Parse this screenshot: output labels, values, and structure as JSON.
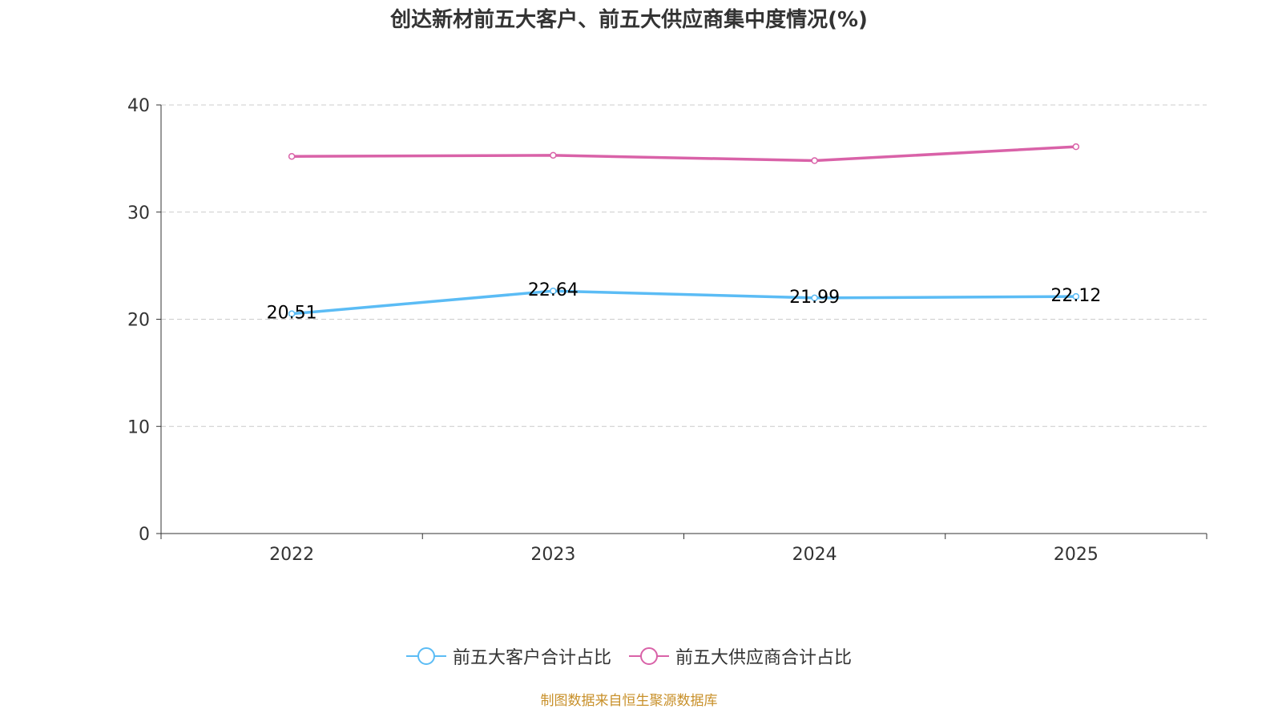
{
  "chart_data": {
    "type": "line",
    "title": "创达新材前五大客户、前五大供应商集中度情况(%)",
    "categories": [
      "2022",
      "2023",
      "2024",
      "2025"
    ],
    "ylim": [
      0,
      40
    ],
    "yticks": [
      0,
      10,
      20,
      30,
      40
    ],
    "grid": true,
    "legend_position": "bottom",
    "series": [
      {
        "name": "前五大客户合计占比",
        "color": "#5bbcf5",
        "values": [
          20.51,
          22.64,
          21.99,
          22.12
        ],
        "labels": [
          "20.51",
          "22.64",
          "21.99",
          "22.12"
        ]
      },
      {
        "name": "前五大供应商合计占比",
        "color": "#d962a8",
        "values": [
          35.2,
          35.3,
          34.8,
          36.1
        ]
      }
    ]
  },
  "source": "制图数据来自恒生聚源数据库"
}
